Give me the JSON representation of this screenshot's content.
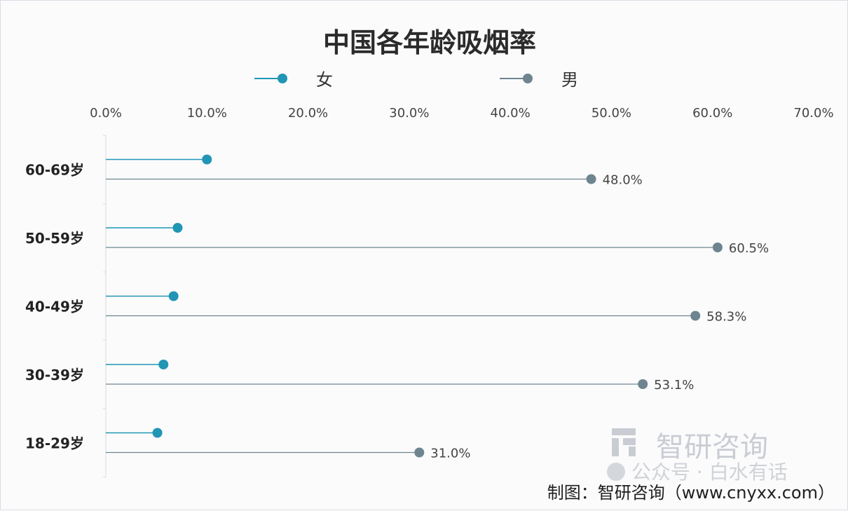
{
  "chart_data": {
    "type": "lollipop-horizontal",
    "title": "中国各年龄吸烟率",
    "legend": [
      {
        "name": "女",
        "color": "#2196b4"
      },
      {
        "name": "男",
        "color": "#6e8590"
      }
    ],
    "legend_position": "top",
    "x_axis": {
      "range": [
        0,
        70
      ],
      "ticks": [
        "0.0%",
        "10.0%",
        "20.0%",
        "30.0%",
        "40.0%",
        "50.0%",
        "60.0%",
        "70.0%"
      ],
      "position": "top"
    },
    "categories": [
      "60-69岁",
      "50-59岁",
      "40-49岁",
      "30-39岁",
      "18-29岁"
    ],
    "series": [
      {
        "name": "女",
        "values": [
          10.0,
          7.1,
          6.7,
          5.7,
          5.1
        ],
        "labels": [
          "",
          "",
          "",
          "",
          ""
        ],
        "color": "#2196b4"
      },
      {
        "name": "男",
        "values": [
          48.0,
          60.5,
          58.3,
          53.1,
          31.0
        ],
        "labels": [
          "48.0%",
          "60.5%",
          "58.3%",
          "53.1%",
          "31.0%"
        ],
        "color": "#6e8590"
      }
    ],
    "grid": false
  },
  "watermark": {
    "brand": "智研咨询",
    "wechat": "公众号 · 白水有话"
  },
  "credit": "制图：智研咨询（www.cnyxx.com）"
}
